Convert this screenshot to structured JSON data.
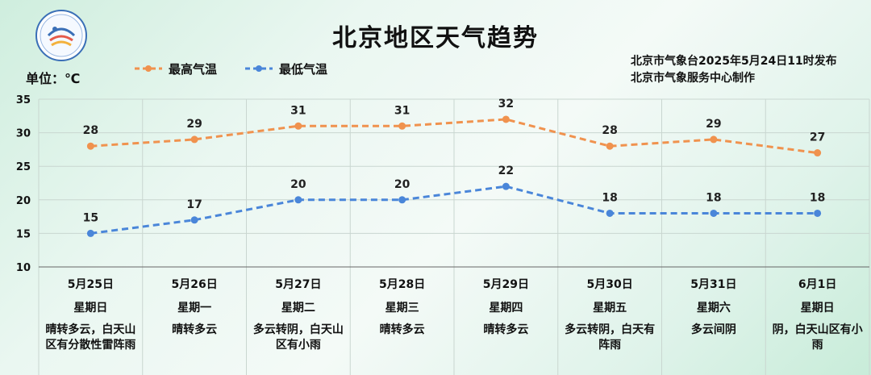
{
  "header": {
    "title": "北京地区天气趋势",
    "unit_label": "单位：℃",
    "source_line1": "北京市气象台2025年5月24日11时发布",
    "source_line2": "北京市气象服务中心制作"
  },
  "colors": {
    "high": "#F0924E",
    "low": "#4A86D9",
    "grid": "#c9d6d0",
    "axis": "#666666"
  },
  "chart_data": {
    "type": "line",
    "ylim": [
      10,
      35
    ],
    "yticks": [
      10,
      15,
      20,
      25,
      30,
      35
    ],
    "categories": [
      "5月25日",
      "5月26日",
      "5月27日",
      "5月28日",
      "5月29日",
      "5月30日",
      "5月31日",
      "6月1日"
    ],
    "weekdays": [
      "星期日",
      "星期一",
      "星期二",
      "星期三",
      "星期四",
      "星期五",
      "星期六",
      "星期日"
    ],
    "weather": [
      "晴转多云，白天山区有分散性雷阵雨",
      "晴转多云",
      "多云转阴，白天山区有小雨",
      "晴转多云",
      "晴转多云",
      "多云转阴，白天有阵雨",
      "多云间阴",
      "阴，白天山区有小雨"
    ],
    "series": [
      {
        "name": "最高气温",
        "values": [
          28,
          29,
          31,
          31,
          32,
          28,
          29,
          27
        ]
      },
      {
        "name": "最低气温",
        "values": [
          15,
          17,
          20,
          20,
          22,
          18,
          18,
          18
        ]
      }
    ],
    "legend_position": "top"
  }
}
